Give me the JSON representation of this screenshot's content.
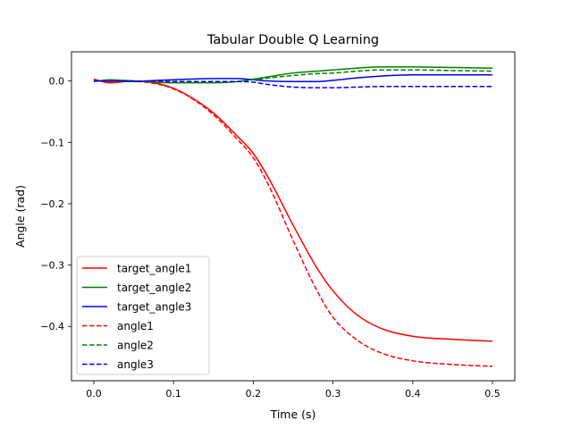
{
  "chart_data": {
    "type": "line",
    "title": "Tabular Double Q Learning",
    "xlabel": "Time (s)",
    "ylabel": "Angle (rad)",
    "xlim": [
      -0.028,
      0.528
    ],
    "ylim": [
      -0.4885,
      0.0475
    ],
    "xticks": [
      {
        "value": 0.0,
        "label": "0.0"
      },
      {
        "value": 0.1,
        "label": "0.1"
      },
      {
        "value": 0.2,
        "label": "0.2"
      },
      {
        "value": 0.3,
        "label": "0.3"
      },
      {
        "value": 0.4,
        "label": "0.4"
      },
      {
        "value": 0.5,
        "label": "0.5"
      }
    ],
    "yticks": [
      {
        "value": 0.0,
        "label": "0.0"
      },
      {
        "value": -0.1,
        "label": "−0.1"
      },
      {
        "value": -0.2,
        "label": "−0.2"
      },
      {
        "value": -0.3,
        "label": "−0.3"
      },
      {
        "value": -0.4,
        "label": "−0.4"
      }
    ],
    "grid": false,
    "legend_position": "lower-left",
    "x": [
      0.0,
      0.02,
      0.05,
      0.08,
      0.1,
      0.12,
      0.15,
      0.18,
      0.2,
      0.22,
      0.25,
      0.28,
      0.3,
      0.33,
      0.36,
      0.4,
      0.45,
      0.5
    ],
    "series": [
      {
        "name": "target_angle1",
        "color": "#ff0000",
        "dash": "solid",
        "values": [
          0.003,
          -0.003,
          0.0,
          -0.004,
          -0.012,
          -0.025,
          -0.052,
          -0.09,
          -0.118,
          -0.16,
          -0.235,
          -0.305,
          -0.342,
          -0.381,
          -0.403,
          -0.416,
          -0.421,
          -0.424
        ]
      },
      {
        "name": "target_angle2",
        "color": "#008000",
        "dash": "solid",
        "values": [
          -0.001,
          0.002,
          0.0,
          -0.002,
          -0.003,
          -0.003,
          -0.003,
          -0.001,
          0.003,
          0.007,
          0.013,
          0.016,
          0.018,
          0.021,
          0.023,
          0.023,
          0.022,
          0.021
        ]
      },
      {
        "name": "target_angle3",
        "color": "#0000ff",
        "dash": "solid",
        "values": [
          0.0,
          0.0,
          -0.001,
          0.001,
          0.002,
          0.003,
          0.004,
          0.004,
          0.002,
          0.0,
          -0.001,
          -0.001,
          0.001,
          0.005,
          0.008,
          0.01,
          0.01,
          0.01
        ]
      },
      {
        "name": "angle1",
        "color": "#ff0000",
        "dash": "dashed",
        "values": [
          0.002,
          -0.001,
          -0.001,
          -0.005,
          -0.013,
          -0.026,
          -0.055,
          -0.095,
          -0.125,
          -0.172,
          -0.26,
          -0.342,
          -0.385,
          -0.422,
          -0.443,
          -0.456,
          -0.462,
          -0.465
        ]
      },
      {
        "name": "angle2",
        "color": "#008000",
        "dash": "dashed",
        "values": [
          0.0,
          0.001,
          -0.001,
          -0.001,
          -0.002,
          -0.002,
          -0.002,
          -0.001,
          0.002,
          0.005,
          0.009,
          0.012,
          0.013,
          0.016,
          0.018,
          0.018,
          0.017,
          0.016
        ]
      },
      {
        "name": "angle3",
        "color": "#0000ff",
        "dash": "dashed",
        "values": [
          0.0,
          0.0,
          0.0,
          0.0,
          -0.001,
          -0.001,
          -0.001,
          -0.001,
          -0.002,
          -0.006,
          -0.01,
          -0.011,
          -0.011,
          -0.01,
          -0.009,
          -0.009,
          -0.009,
          -0.009
        ]
      }
    ]
  }
}
